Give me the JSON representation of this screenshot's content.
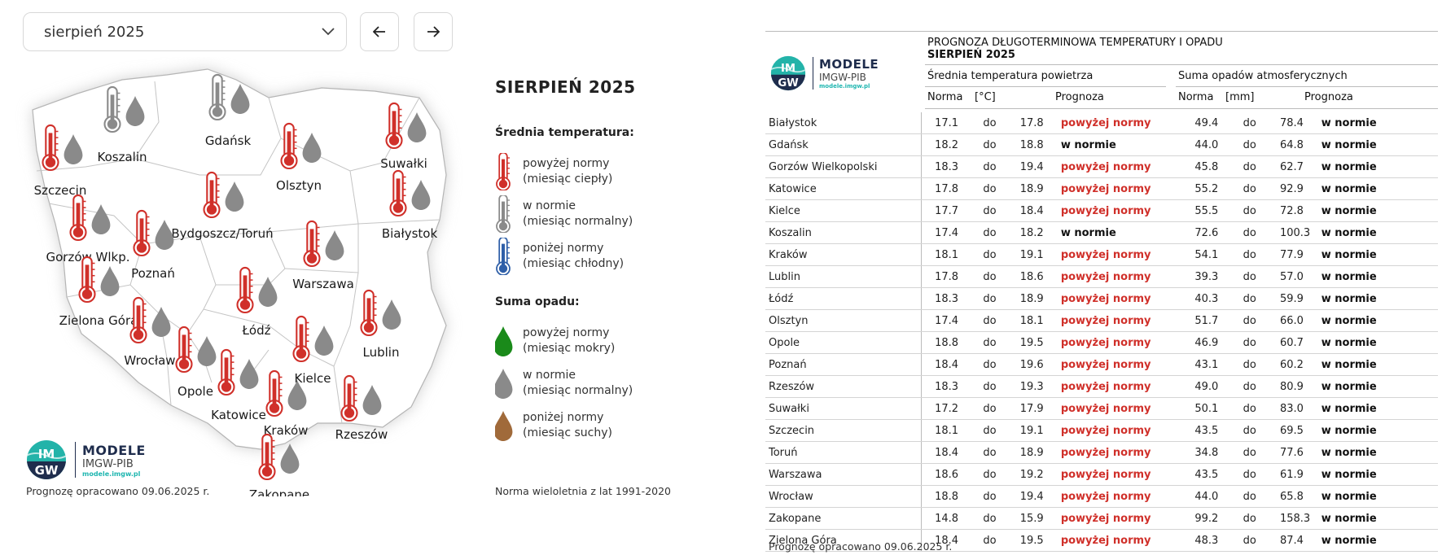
{
  "controls": {
    "month_select": "sierpień 2025"
  },
  "map": {
    "cities": [
      {
        "name": "Szczecin",
        "temp": "above",
        "precip": "normal"
      },
      {
        "name": "Koszalin",
        "temp": "normal",
        "precip": "normal"
      },
      {
        "name": "Gdańsk",
        "temp": "normal",
        "precip": "normal"
      },
      {
        "name": "Olsztyn",
        "temp": "above",
        "precip": "normal"
      },
      {
        "name": "Suwałki",
        "temp": "above",
        "precip": "normal"
      },
      {
        "name": "Białystok",
        "temp": "above",
        "precip": "normal"
      },
      {
        "name": "Bydgoszcz/Toruń",
        "temp": "above",
        "precip": "normal"
      },
      {
        "name": "Gorzów Wlkp.",
        "temp": "above",
        "precip": "normal"
      },
      {
        "name": "Poznań",
        "temp": "above",
        "precip": "normal"
      },
      {
        "name": "Warszawa",
        "temp": "above",
        "precip": "normal"
      },
      {
        "name": "Zielona Góra",
        "temp": "above",
        "precip": "normal"
      },
      {
        "name": "Łódź",
        "temp": "above",
        "precip": "normal"
      },
      {
        "name": "Lublin",
        "temp": "above",
        "precip": "normal"
      },
      {
        "name": "Wrocław",
        "temp": "above",
        "precip": "normal"
      },
      {
        "name": "Opole",
        "temp": "above",
        "precip": "normal"
      },
      {
        "name": "Kielce",
        "temp": "above",
        "precip": "normal"
      },
      {
        "name": "Katowice",
        "temp": "above",
        "precip": "normal"
      },
      {
        "name": "Kraków",
        "temp": "above",
        "precip": "normal"
      },
      {
        "name": "Rzeszów",
        "temp": "above",
        "precip": "normal"
      },
      {
        "name": "Zakopane",
        "temp": "above",
        "precip": "normal"
      }
    ],
    "footnote": "Prognozę opracowano 09.06.2025 r."
  },
  "logo": {
    "line1": "MODELE",
    "line2": "IMGW-PIB",
    "line3": "modele.imgw.pl",
    "badge_top": "IM",
    "badge_bottom": "GW"
  },
  "legend": {
    "title": "SIERPIEŃ 2025",
    "temp_heading": "Średnia temperatura:",
    "temp_items": [
      {
        "line1": "powyżej normy",
        "line2": "(miesiąc ciepły)",
        "color": "#d0302a"
      },
      {
        "line1": "w normie",
        "line2": "(miesiąc normalny)",
        "color": "#8a8a8a"
      },
      {
        "line1": "poniżej normy",
        "line2": "(miesiąc chłodny)",
        "color": "#2f5fa8"
      }
    ],
    "precip_heading": "Suma opadu:",
    "precip_items": [
      {
        "line1": "powyżej normy",
        "line2": "(miesiąc mokry)",
        "color": "#1a8a1a"
      },
      {
        "line1": "w normie",
        "line2": "(miesiąc normalny)",
        "color": "#8a8a8a"
      },
      {
        "line1": "poniżej normy",
        "line2": "(miesiąc suchy)",
        "color": "#a06a3a"
      }
    ],
    "footnote": "Norma wieloletnia z lat 1991-2020"
  },
  "table": {
    "title1": "PROGNOZA DŁUGOTERMINOWA TEMPERATURY I OPADU",
    "title2": "SIERPIEŃ 2025",
    "temp_group": "Średnia temperatura powietrza",
    "precip_group": "Suma opadów atmosferycznych",
    "col_norma": "Norma",
    "col_unit_temp": "[°C]",
    "col_unit_precip": "[mm]",
    "col_forecast": "Prognoza",
    "word_to": "do",
    "rows": [
      {
        "city": "Białystok",
        "t_lo": "17.1",
        "t_hi": "17.8",
        "t_fc": "powyżej normy",
        "p_lo": "49.4",
        "p_hi": "78.4",
        "p_fc": "w normie"
      },
      {
        "city": "Gdańsk",
        "t_lo": "18.2",
        "t_hi": "18.8",
        "t_fc": "w normie",
        "p_lo": "44.0",
        "p_hi": "64.8",
        "p_fc": "w normie"
      },
      {
        "city": "Gorzów Wielkopolski",
        "t_lo": "18.3",
        "t_hi": "19.4",
        "t_fc": "powyżej normy",
        "p_lo": "45.8",
        "p_hi": "62.7",
        "p_fc": "w normie"
      },
      {
        "city": "Katowice",
        "t_lo": "17.8",
        "t_hi": "18.9",
        "t_fc": "powyżej normy",
        "p_lo": "55.2",
        "p_hi": "92.9",
        "p_fc": "w normie"
      },
      {
        "city": "Kielce",
        "t_lo": "17.7",
        "t_hi": "18.4",
        "t_fc": "powyżej normy",
        "p_lo": "55.5",
        "p_hi": "72.8",
        "p_fc": "w normie"
      },
      {
        "city": "Koszalin",
        "t_lo": "17.4",
        "t_hi": "18.2",
        "t_fc": "w normie",
        "p_lo": "72.6",
        "p_hi": "100.3",
        "p_fc": "w normie"
      },
      {
        "city": "Kraków",
        "t_lo": "18.1",
        "t_hi": "19.1",
        "t_fc": "powyżej normy",
        "p_lo": "54.1",
        "p_hi": "77.9",
        "p_fc": "w normie"
      },
      {
        "city": "Lublin",
        "t_lo": "17.8",
        "t_hi": "18.6",
        "t_fc": "powyżej normy",
        "p_lo": "39.3",
        "p_hi": "57.0",
        "p_fc": "w normie"
      },
      {
        "city": "Łódź",
        "t_lo": "18.3",
        "t_hi": "18.9",
        "t_fc": "powyżej normy",
        "p_lo": "40.3",
        "p_hi": "59.9",
        "p_fc": "w normie"
      },
      {
        "city": "Olsztyn",
        "t_lo": "17.4",
        "t_hi": "18.1",
        "t_fc": "powyżej normy",
        "p_lo": "51.7",
        "p_hi": "66.0",
        "p_fc": "w normie"
      },
      {
        "city": "Opole",
        "t_lo": "18.8",
        "t_hi": "19.5",
        "t_fc": "powyżej normy",
        "p_lo": "46.9",
        "p_hi": "60.7",
        "p_fc": "w normie"
      },
      {
        "city": "Poznań",
        "t_lo": "18.4",
        "t_hi": "19.6",
        "t_fc": "powyżej normy",
        "p_lo": "43.1",
        "p_hi": "60.2",
        "p_fc": "w normie"
      },
      {
        "city": "Rzeszów",
        "t_lo": "18.3",
        "t_hi": "19.3",
        "t_fc": "powyżej normy",
        "p_lo": "49.0",
        "p_hi": "80.9",
        "p_fc": "w normie"
      },
      {
        "city": "Suwałki",
        "t_lo": "17.2",
        "t_hi": "17.9",
        "t_fc": "powyżej normy",
        "p_lo": "50.1",
        "p_hi": "83.0",
        "p_fc": "w normie"
      },
      {
        "city": "Szczecin",
        "t_lo": "18.1",
        "t_hi": "19.1",
        "t_fc": "powyżej normy",
        "p_lo": "43.5",
        "p_hi": "69.5",
        "p_fc": "w normie"
      },
      {
        "city": "Toruń",
        "t_lo": "18.4",
        "t_hi": "18.9",
        "t_fc": "powyżej normy",
        "p_lo": "34.8",
        "p_hi": "77.6",
        "p_fc": "w normie"
      },
      {
        "city": "Warszawa",
        "t_lo": "18.6",
        "t_hi": "19.2",
        "t_fc": "powyżej normy",
        "p_lo": "43.5",
        "p_hi": "61.9",
        "p_fc": "w normie"
      },
      {
        "city": "Wrocław",
        "t_lo": "18.8",
        "t_hi": "19.4",
        "t_fc": "powyżej normy",
        "p_lo": "44.0",
        "p_hi": "65.8",
        "p_fc": "w normie"
      },
      {
        "city": "Zakopane",
        "t_lo": "14.8",
        "t_hi": "15.9",
        "t_fc": "powyżej normy",
        "p_lo": "99.2",
        "p_hi": "158.3",
        "p_fc": "w normie"
      },
      {
        "city": "Zielona Góra",
        "t_lo": "18.4",
        "t_hi": "19.5",
        "t_fc": "powyżej normy",
        "p_lo": "48.3",
        "p_hi": "87.4",
        "p_fc": "w normie"
      }
    ],
    "footnote": "Prognozę opracowano 09.06.2025 r."
  }
}
